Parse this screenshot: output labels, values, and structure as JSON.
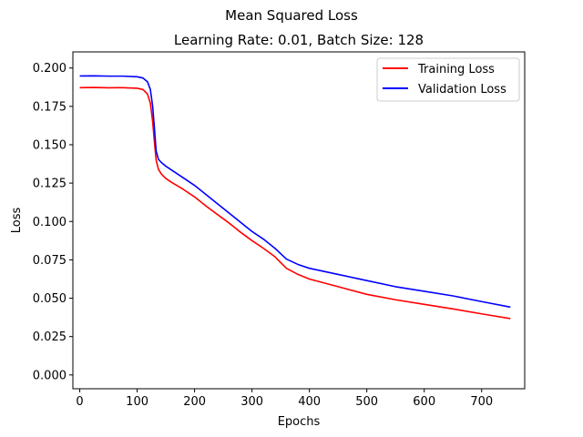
{
  "figure": {
    "suptitle": "Mean Squared Loss"
  },
  "colors": {
    "training": "#ff0000",
    "validation": "#0000ff",
    "axes": "#000000",
    "legend_border": "#cccccc",
    "background": "#ffffff"
  },
  "chart_data": {
    "type": "line",
    "title": "Learning Rate: 0.01, Batch Size: 128",
    "xlabel": "Epochs",
    "ylabel": "Loss",
    "xlim": [
      -12,
      775
    ],
    "ylim": [
      -0.009,
      0.2105
    ],
    "x_ticks": [
      0,
      100,
      200,
      300,
      400,
      500,
      600,
      700
    ],
    "y_ticks": [
      0.0,
      0.025,
      0.05,
      0.075,
      0.1,
      0.125,
      0.15,
      0.175,
      0.2
    ],
    "x_tick_labels": [
      "0",
      "100",
      "200",
      "300",
      "400",
      "500",
      "600",
      "700"
    ],
    "y_tick_labels": [
      "0.000",
      "0.025",
      "0.050",
      "0.075",
      "0.100",
      "0.125",
      "0.150",
      "0.175",
      "0.200"
    ],
    "grid": false,
    "legend_position": "top-right",
    "series": [
      {
        "name": "Training Loss",
        "color": "#ff0000",
        "x": [
          0,
          25,
          50,
          75,
          100,
          110,
          118,
          123,
          127,
          130,
          133,
          137,
          142,
          150,
          160,
          180,
          200,
          220,
          240,
          260,
          280,
          300,
          320,
          340,
          360,
          380,
          400,
          450,
          500,
          550,
          600,
          650,
          700,
          750
        ],
        "y": [
          0.1872,
          0.1873,
          0.1871,
          0.1872,
          0.1868,
          0.186,
          0.183,
          0.177,
          0.165,
          0.152,
          0.14,
          0.134,
          0.131,
          0.128,
          0.1255,
          0.121,
          0.116,
          0.11,
          0.1045,
          0.099,
          0.093,
          0.0875,
          0.0825,
          0.077,
          0.0695,
          0.0655,
          0.0625,
          0.0575,
          0.0525,
          0.049,
          0.046,
          0.043,
          0.0398,
          0.0367
        ]
      },
      {
        "name": "Validation Loss",
        "color": "#0000ff",
        "x": [
          0,
          25,
          50,
          75,
          100,
          110,
          118,
          123,
          127,
          130,
          133,
          137,
          142,
          150,
          160,
          180,
          200,
          220,
          240,
          260,
          280,
          300,
          320,
          340,
          360,
          380,
          400,
          450,
          500,
          550,
          600,
          650,
          700,
          750
        ],
        "y": [
          0.1948,
          0.1949,
          0.1947,
          0.1947,
          0.1943,
          0.1935,
          0.191,
          0.186,
          0.175,
          0.161,
          0.146,
          0.1405,
          0.1385,
          0.136,
          0.1335,
          0.1285,
          0.1235,
          0.1175,
          0.1115,
          0.1055,
          0.0995,
          0.0935,
          0.0885,
          0.0825,
          0.0755,
          0.072,
          0.0695,
          0.0655,
          0.0615,
          0.0575,
          0.0545,
          0.0515,
          0.0478,
          0.0442
        ]
      }
    ]
  }
}
